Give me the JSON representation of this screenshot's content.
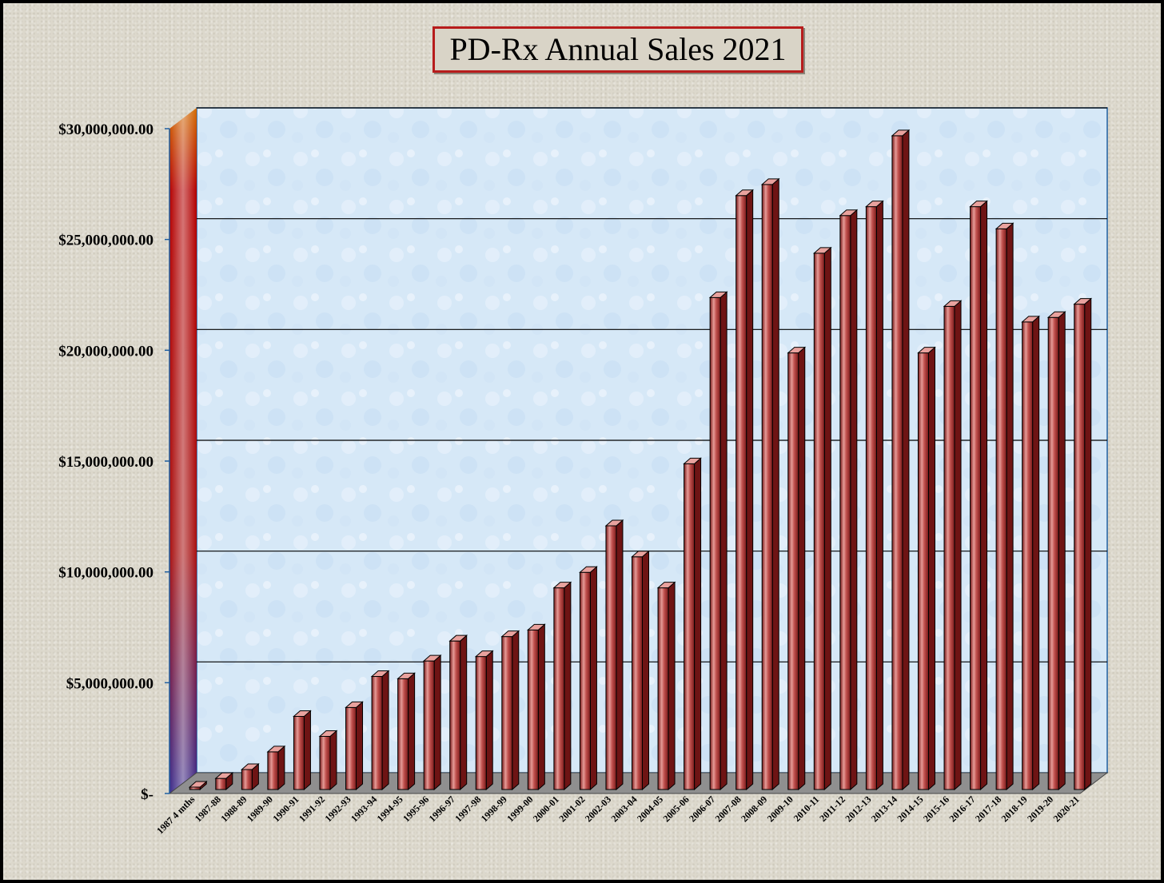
{
  "chart_data": {
    "type": "bar",
    "title": "PD-Rx Annual Sales 2021",
    "xlabel": "",
    "ylabel": "",
    "ylim": [
      0,
      30000000
    ],
    "grid": true,
    "legend": "none",
    "categories": [
      "1987 4 mths",
      "1987-88",
      "1988-89",
      "1989-90",
      "1990-91",
      "1991-92",
      "1992-93",
      "1993-94",
      "1994-95",
      "1995-96",
      "1996-97",
      "1997-98",
      "1998-99",
      "1999-00",
      "2000-01",
      "2001-02",
      "2002-03",
      "2003-04",
      "2004-05",
      "2005-06",
      "2006-07",
      "2007-08",
      "2008-09",
      "2009-10",
      "2010-11",
      "2011-12",
      "2012-13",
      "2013-14",
      "2014-15",
      "2015-16",
      "2016-17",
      "2017-18",
      "2018-19",
      "2019-20",
      "2020-21"
    ],
    "values": [
      100000,
      500000,
      900000,
      1700000,
      3300000,
      2400000,
      3700000,
      5100000,
      5000000,
      5800000,
      6700000,
      6000000,
      6900000,
      7200000,
      9100000,
      9800000,
      11900000,
      10500000,
      9100000,
      14700000,
      22200000,
      26800000,
      27300000,
      19700000,
      24200000,
      25900000,
      26300000,
      29500000,
      19700000,
      21800000,
      26300000,
      25300000,
      21100000,
      21300000,
      21900000
    ],
    "yticks": [
      {
        "value": 0,
        "label": "$-"
      },
      {
        "value": 5000000,
        "label": "$5,000,000.00"
      },
      {
        "value": 10000000,
        "label": "$10,000,000.00"
      },
      {
        "value": 15000000,
        "label": "$15,000,000.00"
      },
      {
        "value": 20000000,
        "label": "$20,000,000.00"
      },
      {
        "value": 25000000,
        "label": "$25,000,000.00"
      },
      {
        "value": 30000000,
        "label": "$30,000,000.00"
      }
    ],
    "colors": {
      "bar": "#c0504d",
      "bar_dark": "#6e1414",
      "bar_light": "#e9a29e",
      "back_wall": "#d6e8f7",
      "floor": "#8f8f8f",
      "axis_line": "#1f5fa0",
      "gridline": "#000000",
      "title_border": "#b71c1c",
      "side_wall_top": "#d26a00",
      "side_wall_mid": "#b40000",
      "side_wall_bottom": "#3a2a8a"
    }
  }
}
